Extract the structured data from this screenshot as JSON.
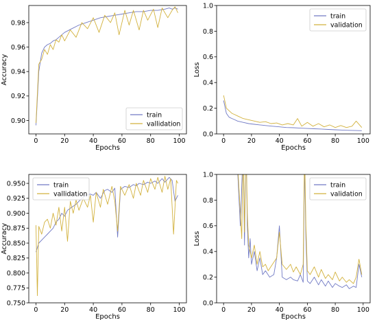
{
  "colors": {
    "train": "#7079c4",
    "validation": "#d2b13c"
  },
  "chart_data": [
    {
      "type": "line",
      "xlabel": "Epochs",
      "ylabel": "Accuracy",
      "xlim": [
        -5,
        105
      ],
      "ylim": [
        0.889,
        0.994
      ],
      "xticks": [
        0,
        20,
        40,
        60,
        80,
        100
      ],
      "yticks": [
        0.9,
        0.92,
        0.94,
        0.96,
        0.98
      ],
      "ytick_labels": [
        "0.90",
        "0.92",
        "0.94",
        "0.96",
        "0.98"
      ],
      "legend_position": "lower-right",
      "series": [
        {
          "name": "train",
          "color_key": "train",
          "x": [
            0,
            2,
            4,
            6,
            8,
            10,
            12,
            14,
            16,
            18,
            20,
            25,
            30,
            35,
            40,
            45,
            50,
            55,
            60,
            65,
            70,
            75,
            80,
            85,
            90,
            93,
            95,
            97,
            99
          ],
          "y": [
            0.896,
            0.94,
            0.955,
            0.96,
            0.962,
            0.963,
            0.965,
            0.966,
            0.968,
            0.97,
            0.972,
            0.975,
            0.978,
            0.98,
            0.982,
            0.984,
            0.985,
            0.986,
            0.987,
            0.988,
            0.989,
            0.989,
            0.99,
            0.99,
            0.991,
            0.992,
            0.991,
            0.992,
            0.991
          ]
        },
        {
          "name": "vallidation",
          "color_key": "validation",
          "x": [
            0,
            2,
            4,
            6,
            8,
            10,
            12,
            14,
            16,
            18,
            20,
            24,
            28,
            32,
            36,
            40,
            44,
            48,
            52,
            55,
            58,
            62,
            65,
            68,
            72,
            75,
            78,
            82,
            85,
            88,
            92,
            95,
            97,
            99
          ],
          "y": [
            0.898,
            0.946,
            0.95,
            0.958,
            0.954,
            0.962,
            0.958,
            0.966,
            0.964,
            0.97,
            0.965,
            0.974,
            0.968,
            0.98,
            0.975,
            0.984,
            0.972,
            0.986,
            0.98,
            0.988,
            0.97,
            0.99,
            0.978,
            0.99,
            0.974,
            0.99,
            0.982,
            0.991,
            0.976,
            0.992,
            0.984,
            0.99,
            0.993,
            0.988
          ]
        }
      ]
    },
    {
      "type": "line",
      "xlabel": "Epochs",
      "ylabel": "Loss",
      "xlim": [
        -5,
        105
      ],
      "ylim": [
        0,
        1
      ],
      "xticks": [
        0,
        20,
        40,
        60,
        80,
        100
      ],
      "yticks": [
        0.0,
        0.2,
        0.4,
        0.6,
        0.8,
        1.0
      ],
      "ytick_labels": [
        "0.0",
        "0.2",
        "0.4",
        "0.6",
        "0.8",
        "1.0"
      ],
      "legend_position": "upper-right",
      "series": [
        {
          "name": "train",
          "color_key": "train",
          "x": [
            0,
            2,
            4,
            6,
            8,
            10,
            14,
            18,
            22,
            26,
            30,
            35,
            40,
            45,
            50,
            55,
            60,
            65,
            70,
            75,
            80,
            85,
            90,
            95,
            99
          ],
          "y": [
            0.26,
            0.16,
            0.13,
            0.12,
            0.11,
            0.1,
            0.09,
            0.08,
            0.075,
            0.07,
            0.065,
            0.06,
            0.055,
            0.05,
            0.048,
            0.045,
            0.042,
            0.04,
            0.038,
            0.035,
            0.032,
            0.03,
            0.028,
            0.026,
            0.025
          ]
        },
        {
          "name": "validation",
          "color_key": "validation",
          "x": [
            0,
            2,
            4,
            6,
            8,
            10,
            14,
            18,
            22,
            26,
            30,
            34,
            38,
            42,
            46,
            50,
            53,
            56,
            60,
            64,
            68,
            72,
            76,
            80,
            84,
            88,
            92,
            95,
            99
          ],
          "y": [
            0.3,
            0.2,
            0.18,
            0.16,
            0.15,
            0.14,
            0.12,
            0.11,
            0.1,
            0.09,
            0.095,
            0.08,
            0.085,
            0.07,
            0.08,
            0.07,
            0.12,
            0.06,
            0.09,
            0.06,
            0.08,
            0.055,
            0.07,
            0.05,
            0.065,
            0.05,
            0.06,
            0.1,
            0.05
          ]
        }
      ]
    },
    {
      "type": "line",
      "xlabel": "Epochs",
      "ylabel": "Accuracy",
      "xlim": [
        -5,
        105
      ],
      "ylim": [
        0.75,
        0.965
      ],
      "xticks": [
        0,
        20,
        40,
        60,
        80,
        100
      ],
      "yticks": [
        0.75,
        0.775,
        0.8,
        0.825,
        0.85,
        0.875,
        0.9,
        0.925,
        0.95
      ],
      "ytick_labels": [
        "0.750",
        "0.775",
        "0.800",
        "0.825",
        "0.850",
        "0.875",
        "0.900",
        "0.925",
        "0.950"
      ],
      "legend_position": "upper-left",
      "series": [
        {
          "name": "train",
          "color_key": "train",
          "x": [
            0,
            2,
            4,
            6,
            8,
            10,
            12,
            14,
            16,
            18,
            20,
            22,
            25,
            28,
            30,
            32,
            35,
            38,
            40,
            42,
            45,
            48,
            50,
            53,
            55,
            57,
            59,
            62,
            65,
            68,
            70,
            72,
            75,
            78,
            80,
            83,
            85,
            88,
            90,
            93,
            95,
            97,
            99
          ],
          "y": [
            0.835,
            0.85,
            0.855,
            0.86,
            0.865,
            0.87,
            0.875,
            0.885,
            0.89,
            0.9,
            0.895,
            0.905,
            0.91,
            0.915,
            0.92,
            0.925,
            0.93,
            0.932,
            0.93,
            0.935,
            0.925,
            0.938,
            0.94,
            0.935,
            0.942,
            0.86,
            0.94,
            0.945,
            0.943,
            0.948,
            0.946,
            0.95,
            0.948,
            0.952,
            0.95,
            0.954,
            0.95,
            0.958,
            0.952,
            0.96,
            0.955,
            0.92,
            0.93
          ]
        },
        {
          "name": "vallidation",
          "color_key": "validation",
          "x": [
            0,
            1,
            2,
            4,
            6,
            8,
            10,
            12,
            14,
            16,
            18,
            20,
            22,
            24,
            26,
            28,
            30,
            33,
            36,
            38,
            40,
            42,
            45,
            47,
            50,
            53,
            55,
            57,
            59,
            62,
            65,
            68,
            70,
            73,
            75,
            78,
            80,
            83,
            85,
            88,
            90,
            92,
            94,
            96,
            98,
            99
          ],
          "y": [
            0.88,
            0.762,
            0.878,
            0.865,
            0.885,
            0.89,
            0.875,
            0.9,
            0.88,
            0.91,
            0.87,
            0.91,
            0.853,
            0.92,
            0.9,
            0.922,
            0.905,
            0.925,
            0.91,
            0.93,
            0.885,
            0.935,
            0.91,
            0.94,
            0.915,
            0.945,
            0.92,
            0.87,
            0.945,
            0.93,
            0.948,
            0.925,
            0.95,
            0.93,
            0.955,
            0.935,
            0.958,
            0.94,
            0.96,
            0.935,
            0.962,
            0.94,
            0.958,
            0.865,
            0.955,
            0.95
          ]
        }
      ]
    },
    {
      "type": "line",
      "xlabel": "Epochs",
      "ylabel": "Loss",
      "xlim": [
        -5,
        105
      ],
      "ylim": [
        0,
        1
      ],
      "xticks": [
        0,
        20,
        40,
        60,
        80,
        100
      ],
      "yticks": [
        0.0,
        0.2,
        0.4,
        0.6,
        0.8,
        1.0
      ],
      "ytick_labels": [
        "0.0",
        "0.2",
        "0.4",
        "0.6",
        "0.8",
        "1.0"
      ],
      "legend_position": "upper-right",
      "series": [
        {
          "name": "train",
          "color_key": "train",
          "x": [
            10,
            12,
            14,
            15,
            16,
            17,
            18,
            19,
            20,
            22,
            24,
            26,
            28,
            30,
            33,
            36,
            38,
            40,
            42,
            45,
            48,
            50,
            53,
            55,
            57,
            58,
            59,
            60,
            62,
            65,
            68,
            70,
            73,
            75,
            78,
            80,
            83,
            85,
            88,
            90,
            93,
            95,
            97,
            99
          ],
          "y": [
            1.05,
            0.6,
            1.2,
            0.45,
            1.3,
            0.6,
            0.35,
            0.5,
            0.3,
            0.4,
            0.25,
            0.35,
            0.22,
            0.25,
            0.2,
            0.22,
            0.35,
            0.6,
            0.2,
            0.18,
            0.2,
            0.18,
            0.17,
            0.22,
            0.16,
            1.1,
            0.5,
            0.17,
            0.15,
            0.2,
            0.14,
            0.18,
            0.13,
            0.17,
            0.12,
            0.15,
            0.13,
            0.12,
            0.14,
            0.11,
            0.13,
            0.12,
            0.3,
            0.2
          ]
        },
        {
          "name": "validation",
          "color_key": "validation",
          "x": [
            10,
            12,
            13,
            14,
            15,
            16,
            17,
            18,
            19,
            20,
            22,
            24,
            26,
            28,
            30,
            32,
            35,
            38,
            40,
            42,
            45,
            48,
            50,
            52,
            55,
            57,
            58,
            59,
            60,
            62,
            65,
            68,
            70,
            73,
            75,
            78,
            80,
            83,
            85,
            88,
            90,
            93,
            95,
            97,
            99
          ],
          "y": [
            1.1,
            0.7,
            0.5,
            1.25,
            0.55,
            1.3,
            0.7,
            0.45,
            0.4,
            0.35,
            0.45,
            0.3,
            0.4,
            0.28,
            0.3,
            0.25,
            0.3,
            0.35,
            0.55,
            0.3,
            0.26,
            0.3,
            0.24,
            0.28,
            0.22,
            0.3,
            1.2,
            0.6,
            0.25,
            0.22,
            0.28,
            0.2,
            0.26,
            0.19,
            0.22,
            0.18,
            0.24,
            0.17,
            0.2,
            0.16,
            0.18,
            0.15,
            0.2,
            0.34,
            0.22
          ]
        }
      ]
    }
  ]
}
